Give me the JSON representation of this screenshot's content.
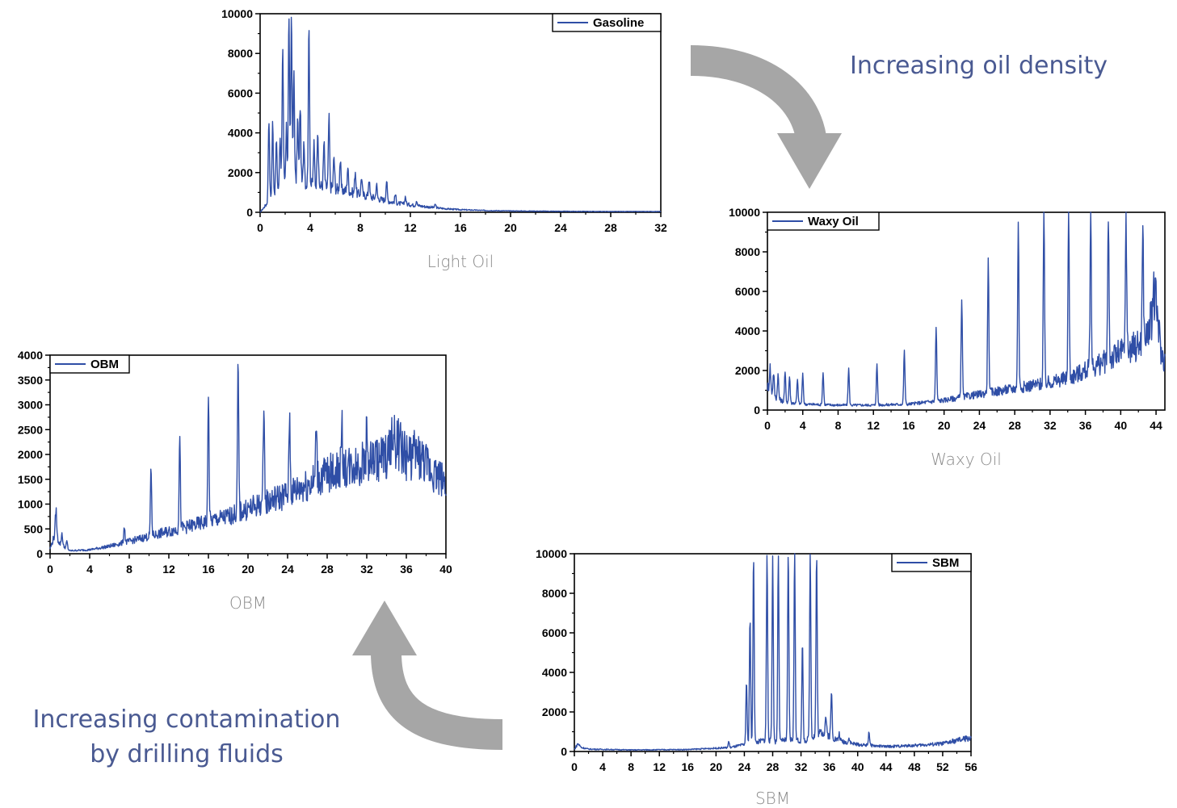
{
  "annotations": {
    "density": "Increasing oil density",
    "contamination_line1": "Increasing contamination",
    "contamination_line2": "by drilling fluids"
  },
  "colors": {
    "series": "#2f4ea6",
    "arrow": "#a6a6a6",
    "annotation": "#4a5a92",
    "caption": "#8a8a8a"
  },
  "chart_data": [
    {
      "id": "light-oil",
      "type": "line",
      "caption": "Light Oil",
      "series": [
        {
          "name": "Gasoline"
        }
      ],
      "legend_position": "top-right",
      "xlim": [
        0,
        32
      ],
      "ylim": [
        0,
        10000
      ],
      "xticks": [
        0,
        4,
        8,
        12,
        16,
        20,
        24,
        28,
        32
      ],
      "yticks": [
        0,
        2000,
        4000,
        6000,
        8000,
        10000
      ],
      "baseline": [
        [
          0,
          0
        ],
        [
          0.5,
          400
        ],
        [
          1,
          900
        ],
        [
          1.5,
          1200
        ],
        [
          2,
          1400
        ],
        [
          2.5,
          1500
        ],
        [
          3,
          1500
        ],
        [
          4,
          1400
        ],
        [
          5,
          1300
        ],
        [
          6,
          1200
        ],
        [
          7,
          1050
        ],
        [
          8,
          900
        ],
        [
          9,
          750
        ],
        [
          10,
          600
        ],
        [
          11,
          450
        ],
        [
          12,
          380
        ],
        [
          13,
          300
        ],
        [
          14,
          230
        ],
        [
          15,
          170
        ],
        [
          16,
          130
        ],
        [
          18,
          90
        ],
        [
          20,
          70
        ],
        [
          24,
          50
        ],
        [
          28,
          40
        ],
        [
          32,
          40
        ]
      ],
      "peaks": [
        [
          0.7,
          4700
        ],
        [
          1.0,
          4500
        ],
        [
          1.3,
          3600
        ],
        [
          1.6,
          3800
        ],
        [
          1.8,
          8300
        ],
        [
          2.1,
          4200
        ],
        [
          2.3,
          9800
        ],
        [
          2.5,
          10000
        ],
        [
          2.7,
          7100
        ],
        [
          3.0,
          4700
        ],
        [
          3.2,
          5400
        ],
        [
          3.5,
          3700
        ],
        [
          3.9,
          9300
        ],
        [
          4.3,
          3400
        ],
        [
          4.6,
          4300
        ],
        [
          5.1,
          3500
        ],
        [
          5.5,
          4800
        ],
        [
          5.9,
          2800
        ],
        [
          6.4,
          2600
        ],
        [
          7.0,
          2300
        ],
        [
          7.6,
          2100
        ],
        [
          8.1,
          1800
        ],
        [
          8.7,
          1700
        ],
        [
          9.3,
          1400
        ],
        [
          10.1,
          1600
        ],
        [
          10.8,
          900
        ],
        [
          11.6,
          800
        ],
        [
          12.5,
          600
        ],
        [
          14.0,
          400
        ]
      ]
    },
    {
      "id": "waxy-oil",
      "type": "line",
      "caption": "Waxy Oil",
      "series": [
        {
          "name": "Waxy Oil"
        }
      ],
      "legend_position": "top-left",
      "xlim": [
        0,
        45
      ],
      "ylim": [
        0,
        10000
      ],
      "xticks": [
        0,
        4,
        8,
        12,
        16,
        20,
        24,
        28,
        32,
        36,
        40,
        44
      ],
      "yticks": [
        0,
        2000,
        4000,
        6000,
        8000,
        10000
      ],
      "baseline": [
        [
          0,
          1200
        ],
        [
          1,
          600
        ],
        [
          2,
          400
        ],
        [
          4,
          300
        ],
        [
          8,
          250
        ],
        [
          12,
          250
        ],
        [
          16,
          300
        ],
        [
          20,
          500
        ],
        [
          24,
          800
        ],
        [
          28,
          1100
        ],
        [
          32,
          1400
        ],
        [
          34,
          1600
        ],
        [
          36,
          2000
        ],
        [
          38,
          2400
        ],
        [
          40,
          2900
        ],
        [
          42,
          3300
        ],
        [
          43,
          3800
        ],
        [
          44,
          5500
        ],
        [
          44.6,
          2800
        ],
        [
          45,
          2500
        ]
      ],
      "peaks": [
        [
          0.3,
          2200
        ],
        [
          0.7,
          1900
        ],
        [
          1.2,
          1800
        ],
        [
          2.0,
          1900
        ],
        [
          2.5,
          1700
        ],
        [
          3.4,
          1500
        ],
        [
          4.0,
          1800
        ],
        [
          6.3,
          1900
        ],
        [
          9.2,
          2100
        ],
        [
          12.4,
          2300
        ],
        [
          15.5,
          3000
        ],
        [
          19.1,
          4200
        ],
        [
          22.0,
          5700
        ],
        [
          25.0,
          7600
        ],
        [
          28.4,
          9500
        ],
        [
          31.3,
          10000
        ],
        [
          34.1,
          10000
        ],
        [
          36.6,
          10000
        ],
        [
          38.6,
          10000
        ],
        [
          40.6,
          10000
        ],
        [
          42.5,
          9100
        ],
        [
          43.7,
          6200
        ]
      ]
    },
    {
      "id": "obm",
      "type": "line",
      "caption": "OBM",
      "series": [
        {
          "name": "OBM"
        }
      ],
      "legend_position": "top-left",
      "xlim": [
        0,
        40
      ],
      "ylim": [
        0,
        4000
      ],
      "xticks": [
        0,
        4,
        8,
        12,
        16,
        20,
        24,
        28,
        32,
        36,
        40
      ],
      "yticks": [
        0,
        500,
        1000,
        1500,
        2000,
        2500,
        3000,
        3500,
        4000
      ],
      "baseline": [
        [
          0,
          100
        ],
        [
          0.5,
          400
        ],
        [
          1,
          200
        ],
        [
          2,
          60
        ],
        [
          4,
          80
        ],
        [
          6,
          150
        ],
        [
          8,
          250
        ],
        [
          10,
          350
        ],
        [
          12,
          450
        ],
        [
          14,
          550
        ],
        [
          16,
          650
        ],
        [
          18,
          750
        ],
        [
          20,
          900
        ],
        [
          22,
          1050
        ],
        [
          24,
          1200
        ],
        [
          26,
          1400
        ],
        [
          28,
          1600
        ],
        [
          30,
          1750
        ],
        [
          32,
          1850
        ],
        [
          34,
          1950
        ],
        [
          35,
          2300
        ],
        [
          36,
          1950
        ],
        [
          37,
          2000
        ],
        [
          38,
          1800
        ],
        [
          39,
          1600
        ],
        [
          40,
          1450
        ]
      ],
      "peaks": [
        [
          0.6,
          900
        ],
        [
          1.2,
          420
        ],
        [
          1.7,
          250
        ],
        [
          7.5,
          560
        ],
        [
          10.2,
          1700
        ],
        [
          13.1,
          2350
        ],
        [
          16.0,
          3230
        ],
        [
          19.0,
          3800
        ],
        [
          21.6,
          3130
        ],
        [
          24.2,
          2800
        ],
        [
          26.9,
          2660
        ],
        [
          29.5,
          2530
        ],
        [
          32.0,
          2450
        ],
        [
          34.5,
          2450
        ]
      ]
    },
    {
      "id": "sbm",
      "type": "line",
      "caption": "SBM",
      "series": [
        {
          "name": "SBM"
        }
      ],
      "legend_position": "top-right",
      "xlim": [
        0,
        56
      ],
      "ylim": [
        0,
        10000
      ],
      "xticks": [
        0,
        4,
        8,
        12,
        16,
        20,
        24,
        28,
        32,
        36,
        40,
        44,
        48,
        52,
        56
      ],
      "yticks": [
        0,
        2000,
        4000,
        6000,
        8000,
        10000
      ],
      "baseline": [
        [
          0,
          100
        ],
        [
          0.5,
          400
        ],
        [
          1,
          200
        ],
        [
          2,
          120
        ],
        [
          8,
          80
        ],
        [
          16,
          100
        ],
        [
          22,
          200
        ],
        [
          24,
          350
        ],
        [
          25,
          400
        ],
        [
          26,
          500
        ],
        [
          27,
          600
        ],
        [
          28,
          500
        ],
        [
          29,
          500
        ],
        [
          30,
          600
        ],
        [
          31,
          600
        ],
        [
          32,
          500
        ],
        [
          33,
          600
        ],
        [
          34,
          800
        ],
        [
          35,
          1000
        ],
        [
          36,
          800
        ],
        [
          37,
          600
        ],
        [
          38,
          500
        ],
        [
          40,
          350
        ],
        [
          44,
          250
        ],
        [
          48,
          300
        ],
        [
          52,
          400
        ],
        [
          56,
          700
        ]
      ],
      "peaks": [
        [
          21.8,
          500
        ],
        [
          24.3,
          3500
        ],
        [
          24.8,
          6800
        ],
        [
          25.3,
          10000
        ],
        [
          27.2,
          10000
        ],
        [
          28.0,
          10000
        ],
        [
          28.8,
          10000
        ],
        [
          30.2,
          10000
        ],
        [
          31.1,
          10000
        ],
        [
          32.2,
          5500
        ],
        [
          33.3,
          10000
        ],
        [
          34.2,
          10000
        ],
        [
          35.5,
          1800
        ],
        [
          36.3,
          3000
        ],
        [
          37.4,
          900
        ],
        [
          38.8,
          700
        ],
        [
          41.6,
          1000
        ]
      ]
    }
  ]
}
